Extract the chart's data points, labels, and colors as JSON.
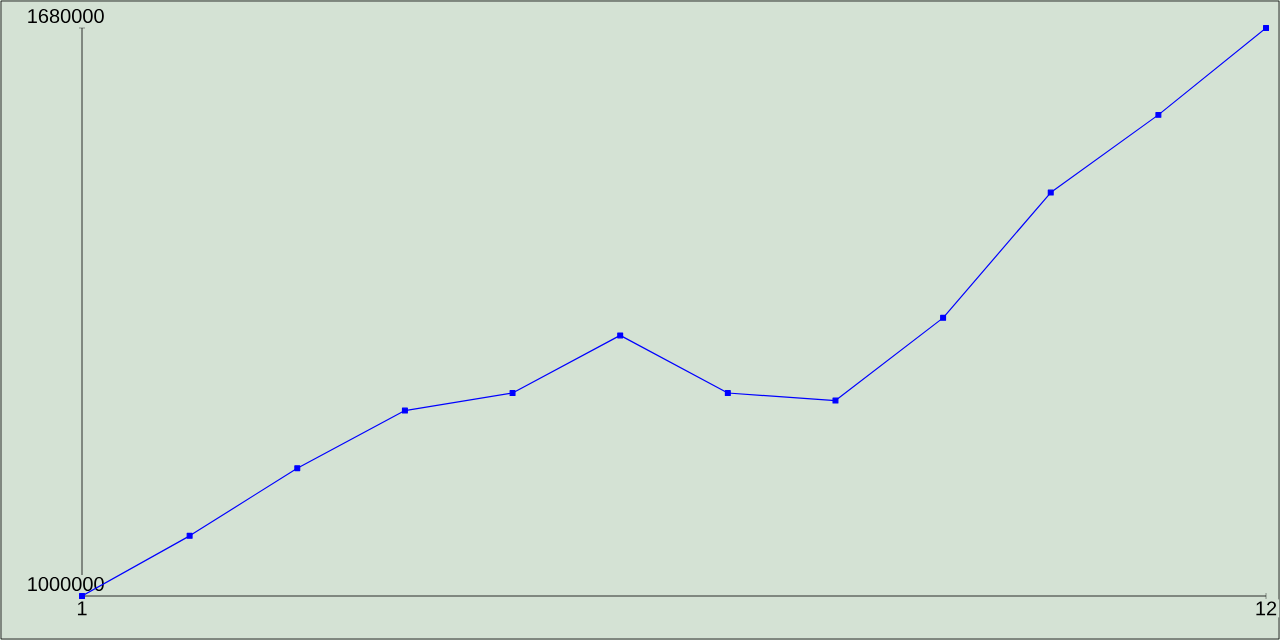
{
  "chart_data": {
    "type": "line",
    "x": [
      1,
      2,
      3,
      4,
      5,
      6,
      7,
      8,
      9,
      10,
      11,
      12
    ],
    "series": [
      {
        "color": "#0000ff",
        "values": [
          1000000,
          1072000,
          1153000,
          1222000,
          1243000,
          1312000,
          1243000,
          1234000,
          1333000,
          1483000,
          1576000,
          1680000
        ]
      }
    ],
    "xlim": [
      1,
      12
    ],
    "xticks": [
      1,
      12
    ],
    "ylim": [
      1000000,
      1680000
    ],
    "yticks": [
      1000000,
      1680000
    ],
    "marker": "square",
    "grid": false
  }
}
